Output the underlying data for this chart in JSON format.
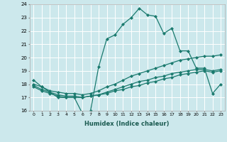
{
  "xlabel": "Humidex (Indice chaleur)",
  "bg_color": "#cce8ec",
  "grid_color": "#ffffff",
  "line_color": "#1a7a6e",
  "xlim": [
    -0.5,
    23.5
  ],
  "ylim": [
    16,
    24
  ],
  "yticks": [
    16,
    17,
    18,
    19,
    20,
    21,
    22,
    23,
    24
  ],
  "xticks": [
    0,
    1,
    2,
    3,
    4,
    5,
    6,
    7,
    8,
    9,
    10,
    11,
    12,
    13,
    14,
    15,
    16,
    17,
    18,
    19,
    20,
    21,
    22,
    23
  ],
  "lines": [
    {
      "x": [
        0,
        1,
        2,
        3,
        4,
        5,
        6,
        7,
        8,
        9,
        10,
        11,
        12,
        13,
        14,
        15,
        16,
        17,
        18,
        19,
        20,
        21,
        22,
        23
      ],
      "y": [
        18.3,
        17.8,
        17.4,
        17.0,
        17.0,
        17.0,
        15.8,
        16.0,
        19.3,
        21.4,
        21.7,
        22.5,
        23.0,
        23.7,
        23.2,
        23.1,
        21.8,
        22.2,
        20.5,
        20.5,
        19.2,
        19.2,
        17.3,
        18.0
      ]
    },
    {
      "x": [
        0,
        1,
        2,
        3,
        4,
        5,
        6,
        7,
        8,
        9,
        10,
        11,
        12,
        13,
        14,
        15,
        16,
        17,
        18,
        19,
        20,
        21,
        22,
        23
      ],
      "y": [
        18.0,
        17.8,
        17.5,
        17.4,
        17.3,
        17.3,
        17.2,
        17.3,
        17.5,
        17.8,
        18.0,
        18.3,
        18.6,
        18.8,
        19.0,
        19.2,
        19.4,
        19.6,
        19.8,
        19.9,
        20.0,
        20.1,
        20.1,
        20.2
      ]
    },
    {
      "x": [
        0,
        1,
        2,
        3,
        4,
        5,
        6,
        7,
        8,
        9,
        10,
        11,
        12,
        13,
        14,
        15,
        16,
        17,
        18,
        19,
        20,
        21,
        22,
        23
      ],
      "y": [
        17.9,
        17.6,
        17.4,
        17.2,
        17.1,
        17.1,
        17.0,
        17.1,
        17.2,
        17.4,
        17.6,
        17.8,
        18.0,
        18.2,
        18.3,
        18.5,
        18.6,
        18.8,
        18.9,
        19.0,
        19.1,
        19.1,
        19.0,
        19.1
      ]
    },
    {
      "x": [
        0,
        1,
        2,
        3,
        4,
        5,
        6,
        7,
        8,
        9,
        10,
        11,
        12,
        13,
        14,
        15,
        16,
        17,
        18,
        19,
        20,
        21,
        22,
        23
      ],
      "y": [
        17.8,
        17.5,
        17.3,
        17.1,
        17.0,
        17.0,
        17.0,
        17.1,
        17.2,
        17.3,
        17.5,
        17.6,
        17.8,
        17.9,
        18.1,
        18.2,
        18.4,
        18.5,
        18.7,
        18.8,
        18.9,
        19.0,
        18.9,
        19.0
      ]
    }
  ]
}
